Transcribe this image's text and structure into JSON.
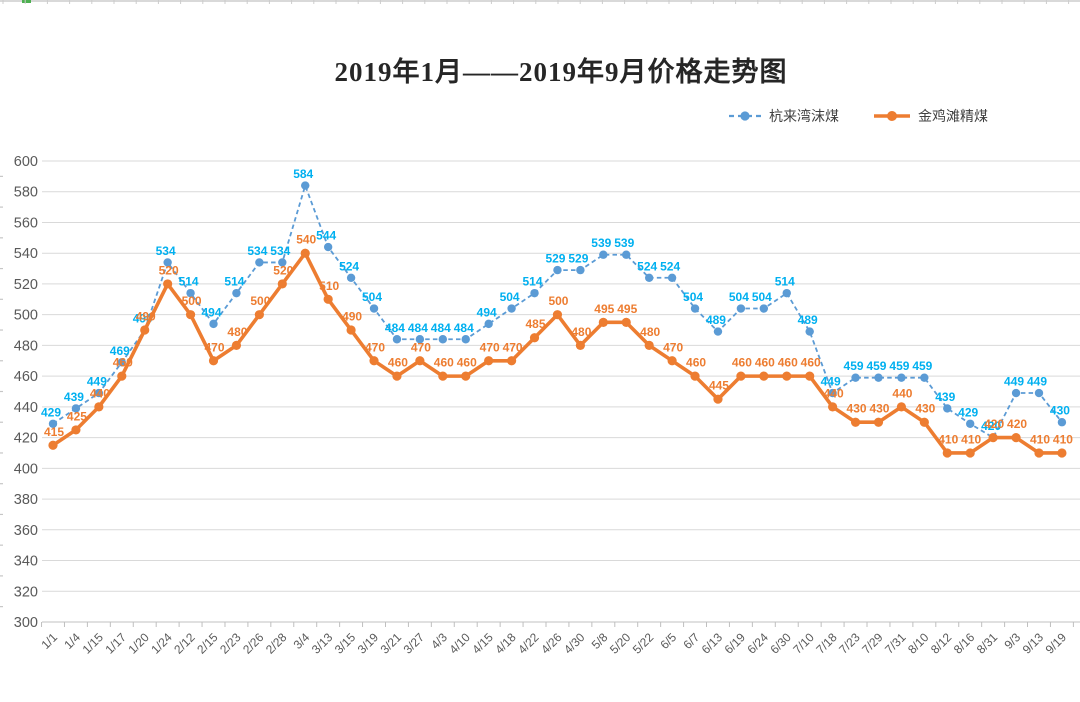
{
  "title": "2019年1月——2019年9月价格走势图",
  "legend": [
    {
      "label": "杭来湾沫煤",
      "color": "#5B9BD5",
      "style": "dashed"
    },
    {
      "label": "金鸡滩精煤",
      "color": "#ED7D31",
      "style": "solid"
    }
  ],
  "chart_data": {
    "type": "line",
    "title": "2019年1月——2019年9月价格走势图",
    "categories": [
      "1/1",
      "1/4",
      "1/15",
      "1/17",
      "1/20",
      "1/24",
      "2/12",
      "2/15",
      "2/23",
      "2/26",
      "2/28",
      "3/4",
      "3/13",
      "3/15",
      "3/19",
      "3/21",
      "3/27",
      "4/3",
      "4/10",
      "4/15",
      "4/18",
      "4/22",
      "4/26",
      "4/30",
      "5/8",
      "5/20",
      "5/22",
      "6/5",
      "6/7",
      "6/13",
      "6/19",
      "6/24",
      "6/30",
      "7/10",
      "7/18",
      "7/23",
      "7/29",
      "7/31",
      "8/10",
      "8/12",
      "8/16",
      "8/31",
      "9/3",
      "9/13",
      "9/19"
    ],
    "series": [
      {
        "name": "杭来湾沫煤",
        "values": [
          429,
          439,
          449,
          469,
          490,
          534,
          514,
          494,
          514,
          534,
          534,
          584,
          544,
          524,
          504,
          484,
          484,
          484,
          484,
          494,
          504,
          514,
          529,
          529,
          539,
          539,
          524,
          524,
          504,
          489,
          504,
          504,
          514,
          489,
          449,
          459,
          459,
          459,
          459,
          439,
          429,
          420,
          449,
          449,
          430
        ],
        "line_color": "#5B9BD5",
        "label_color": "#00B0F0",
        "dash": true
      },
      {
        "name": "金鸡滩精煤",
        "values": [
          415,
          425,
          440,
          460,
          490,
          520,
          500,
          470,
          480,
          500,
          520,
          540,
          510,
          490,
          470,
          460,
          470,
          460,
          460,
          470,
          470,
          485,
          500,
          480,
          495,
          495,
          480,
          470,
          460,
          445,
          460,
          460,
          460,
          460,
          440,
          430,
          430,
          440,
          430,
          410,
          410,
          420,
          420,
          410,
          410
        ],
        "line_color": "#ED7D31",
        "label_color": "#ED7D31",
        "dash": false
      }
    ],
    "ylim": [
      300,
      600
    ],
    "ytick_step": 20,
    "grid": true,
    "grid_color": "#D9D9D9",
    "axis_text_color": "#595959",
    "x_label_rotation": 45,
    "legend_position": "top-right",
    "data_labels": true
  }
}
